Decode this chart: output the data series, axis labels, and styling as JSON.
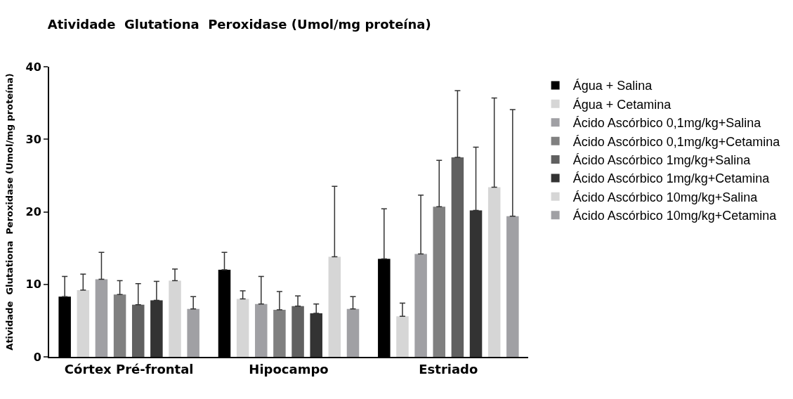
{
  "chart_data": {
    "type": "bar",
    "title": "Atividade  Glutationa  Peroxidase (Umol/mg proteína)",
    "ylabel": "Atividade  Glutationa  Peroxidase (Umol/mg proteína)",
    "categories": [
      "Córtex Pré-frontal",
      "Hipocampo",
      "Estriado"
    ],
    "series": [
      {
        "name": "Água + Salina",
        "color": "#000000",
        "values": [
          8.3,
          12.0,
          13.5
        ],
        "errors": [
          [
            8.3,
            11.1
          ],
          [
            12.0,
            14.4
          ],
          [
            13.5,
            20.4
          ]
        ]
      },
      {
        "name": "Água + Cetamina",
        "color": "#d6d6d6",
        "values": [
          9.2,
          8.0,
          5.6
        ],
        "errors": [
          [
            9.2,
            11.4
          ],
          [
            8.0,
            9.1
          ],
          [
            5.6,
            7.4
          ]
        ]
      },
      {
        "name": "Ácido Ascórbico 0,1mg/kg+Salina",
        "color": "#a0a0a4",
        "values": [
          10.7,
          7.3,
          14.2
        ],
        "errors": [
          [
            10.7,
            14.4
          ],
          [
            7.3,
            11.1
          ],
          [
            14.2,
            22.3
          ]
        ]
      },
      {
        "name": "Ácido Ascórbico 0,1mg/kg+Cetamina",
        "color": "#808080",
        "values": [
          8.6,
          6.5,
          20.7
        ],
        "errors": [
          [
            8.6,
            10.5
          ],
          [
            6.5,
            9.0
          ],
          [
            20.7,
            27.1
          ]
        ]
      },
      {
        "name": "Ácido Ascórbico 1mg/kg+Salina",
        "color": "#606060",
        "values": [
          7.2,
          7.0,
          27.5
        ],
        "errors": [
          [
            7.2,
            10.1
          ],
          [
            7.0,
            8.4
          ],
          [
            27.5,
            36.7
          ]
        ]
      },
      {
        "name": "Ácido Ascórbico 1mg/kg+Cetamina",
        "color": "#333333",
        "values": [
          7.8,
          6.0,
          20.2
        ],
        "errors": [
          [
            7.8,
            10.4
          ],
          [
            6.0,
            7.3
          ],
          [
            20.2,
            28.9
          ]
        ]
      },
      {
        "name": "Ácido Ascórbico 10mg/kg+Salina",
        "color": "#d6d6d6",
        "values": [
          10.5,
          13.8,
          23.4
        ],
        "errors": [
          [
            10.5,
            12.1
          ],
          [
            13.8,
            23.5
          ],
          [
            23.4,
            35.7
          ]
        ]
      },
      {
        "name": "Ácido Ascórbico 10mg/kg+Cetamina",
        "color": "#a0a0a4",
        "values": [
          6.6,
          6.6,
          19.4
        ],
        "errors": [
          [
            6.6,
            8.3
          ],
          [
            6.6,
            8.3
          ],
          [
            19.4,
            34.1
          ]
        ]
      }
    ],
    "ylim": [
      0,
      40
    ],
    "yticks": [
      0,
      10,
      20,
      30,
      40
    ],
    "legend": "right"
  }
}
